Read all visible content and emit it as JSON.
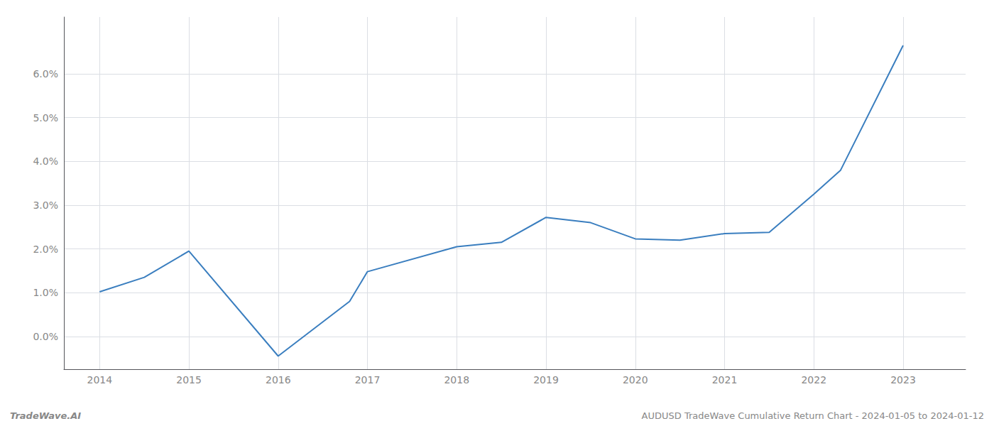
{
  "chart_data": {
    "type": "line",
    "x": [
      2014,
      2014.5,
      2015,
      2016,
      2016.8,
      2017,
      2018,
      2018.5,
      2019,
      2019.5,
      2020,
      2020.5,
      2021,
      2021.5,
      2022,
      2022.3,
      2023
    ],
    "values": [
      1.02,
      1.35,
      1.95,
      -0.45,
      0.8,
      1.48,
      2.05,
      2.15,
      2.72,
      2.6,
      2.23,
      2.2,
      2.35,
      2.38,
      3.25,
      3.8,
      6.65
    ],
    "color": "#3a7ebf",
    "xlim": [
      2013.6,
      2023.7
    ],
    "xticks": [
      2014,
      2015,
      2016,
      2017,
      2018,
      2019,
      2020,
      2021,
      2022,
      2023
    ],
    "ylim": [
      -0.75,
      7.3
    ],
    "yticks": [
      {
        "value": 0.0,
        "label": "0.0%"
      },
      {
        "value": 1.0,
        "label": "1.0%"
      },
      {
        "value": 2.0,
        "label": "2.0%"
      },
      {
        "value": 3.0,
        "label": "3.0%"
      },
      {
        "value": 4.0,
        "label": "4.0%"
      },
      {
        "value": 5.0,
        "label": "5.0%"
      },
      {
        "value": 6.0,
        "label": "6.0%"
      }
    ],
    "grid": true,
    "annotations": [
      "TradeWave.AI",
      "AUDUSD TradeWave Cumulative Return Chart - 2024-01-05 to 2024-01-12"
    ]
  }
}
